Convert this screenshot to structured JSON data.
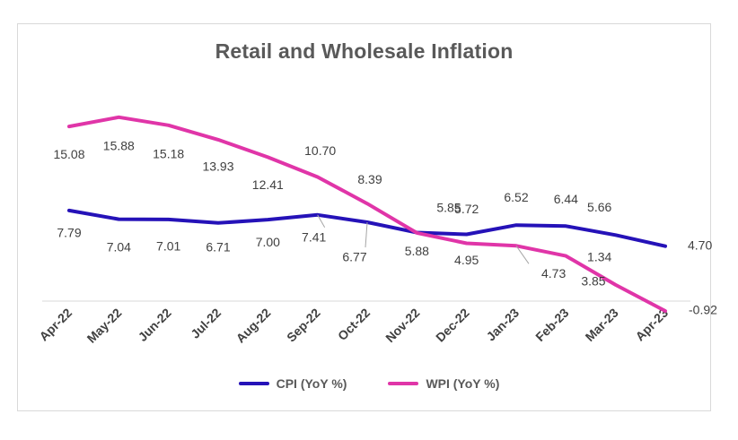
{
  "chart_data": {
    "type": "line",
    "title": "Retail and Wholesale Inflation",
    "xlabel": "",
    "ylabel": "",
    "ylim": [
      -0.92,
      16.5
    ],
    "grid": false,
    "legend_position": "bottom",
    "categories": [
      "Apr-22",
      "May-22",
      "Jun-22",
      "Jul-22",
      "Aug-22",
      "Sep-22",
      "Oct-22",
      "Nov-22",
      "Dec-22",
      "Jan-23",
      "Feb-23",
      "Mar-23",
      "Apr-23"
    ],
    "series": [
      {
        "name": "CPI (YoY %)",
        "color": "#2512b8",
        "values": [
          7.79,
          7.04,
          7.01,
          6.71,
          7.0,
          7.41,
          6.77,
          5.88,
          5.72,
          6.52,
          6.44,
          5.66,
          4.7
        ],
        "labels": [
          "7.79",
          "7.04",
          "7.01",
          "6.71",
          "7.00",
          "7.41",
          "6.77",
          "5.88",
          "5.72",
          "6.52",
          "6.44",
          "5.66",
          "4.70"
        ]
      },
      {
        "name": "WPI (YoY %)",
        "color": "#e035a8",
        "values": [
          15.08,
          15.88,
          15.18,
          13.93,
          12.41,
          10.7,
          8.39,
          5.85,
          4.95,
          4.73,
          3.85,
          1.34,
          -0.92
        ],
        "labels": [
          "15.08",
          "15.88",
          "15.18",
          "13.93",
          "12.41",
          "10.70",
          "8.39",
          "5.85",
          "4.95",
          "4.73",
          "3.85",
          "1.34",
          "-0.92"
        ]
      }
    ]
  }
}
